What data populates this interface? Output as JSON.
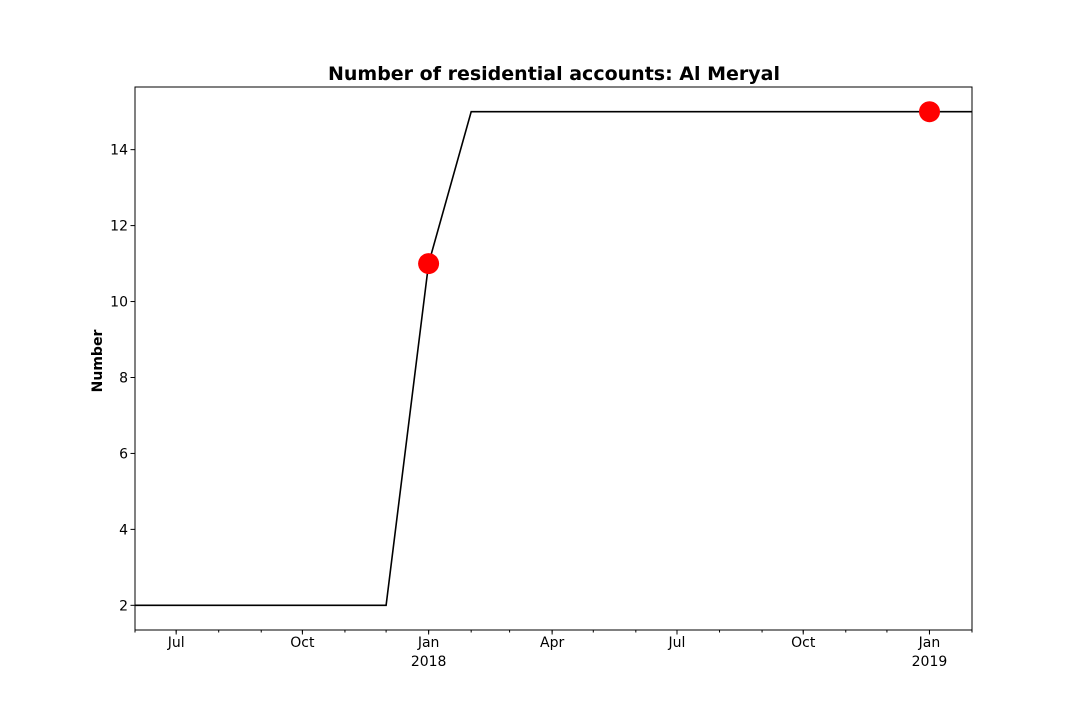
{
  "chart_data": {
    "type": "line",
    "title": "Number of residential accounts: Al Meryal",
    "xlabel": "",
    "ylabel": "Number",
    "grid": false,
    "legend": "none",
    "x_axis": {
      "type": "date",
      "range": [
        "2017-06-01",
        "2019-02-01"
      ],
      "ticks": [
        {
          "date": "2017-07-01",
          "label": "Jul",
          "sublabel": ""
        },
        {
          "date": "2017-10-01",
          "label": "Oct",
          "sublabel": ""
        },
        {
          "date": "2018-01-01",
          "label": "Jan",
          "sublabel": "2018"
        },
        {
          "date": "2018-04-01",
          "label": "Apr",
          "sublabel": ""
        },
        {
          "date": "2018-07-01",
          "label": "Jul",
          "sublabel": ""
        },
        {
          "date": "2018-10-01",
          "label": "Oct",
          "sublabel": ""
        },
        {
          "date": "2019-01-01",
          "label": "Jan",
          "sublabel": "2019"
        }
      ]
    },
    "y_axis": {
      "range": [
        1.35,
        15.65
      ],
      "ticks": [
        2,
        4,
        6,
        8,
        10,
        12,
        14
      ]
    },
    "series": [
      {
        "color": "#000000",
        "points": [
          {
            "x": "2017-06-01",
            "y": 2
          },
          {
            "x": "2017-12-01",
            "y": 2
          },
          {
            "x": "2018-01-01",
            "y": 11
          },
          {
            "x": "2018-02-01",
            "y": 15
          },
          {
            "x": "2019-02-01",
            "y": 15
          }
        ]
      }
    ],
    "markers": {
      "color": "#ff0000",
      "points": [
        {
          "x": "2018-01-01",
          "y": 11
        },
        {
          "x": "2019-01-01",
          "y": 15
        }
      ]
    }
  }
}
